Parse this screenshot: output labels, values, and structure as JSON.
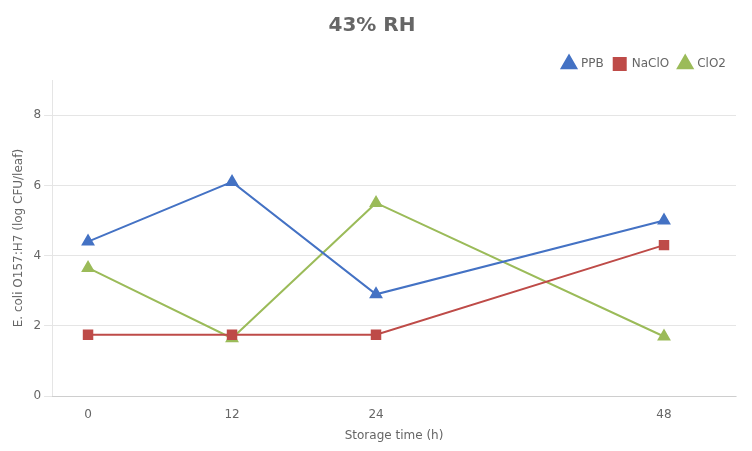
{
  "chart_data": {
    "type": "line",
    "title": "43% RH",
    "xlabel": "Storage time (h)",
    "ylabel": "E. coli O157:H7 (log CFU/leaf)",
    "x": [
      0,
      12,
      24,
      48
    ],
    "series": [
      {
        "name": "PPB",
        "values": [
          4.4,
          6.1,
          2.9,
          5.0
        ],
        "color": "#4472C4",
        "marker": "triangle"
      },
      {
        "name": "NaClO",
        "values": [
          1.75,
          1.75,
          1.75,
          4.3
        ],
        "color": "#BE4B48",
        "marker": "square"
      },
      {
        "name": "ClO2",
        "values": [
          3.65,
          1.65,
          5.5,
          1.7
        ],
        "color": "#9BBB59",
        "marker": "triangle"
      }
    ],
    "xlim": [
      -3,
      54
    ],
    "xticks": [
      0,
      12,
      24,
      48
    ],
    "ylim": [
      0.0,
      9.0
    ],
    "yticks": [
      0,
      2,
      4,
      6,
      8
    ],
    "grid": "y",
    "legend": "upper right"
  }
}
